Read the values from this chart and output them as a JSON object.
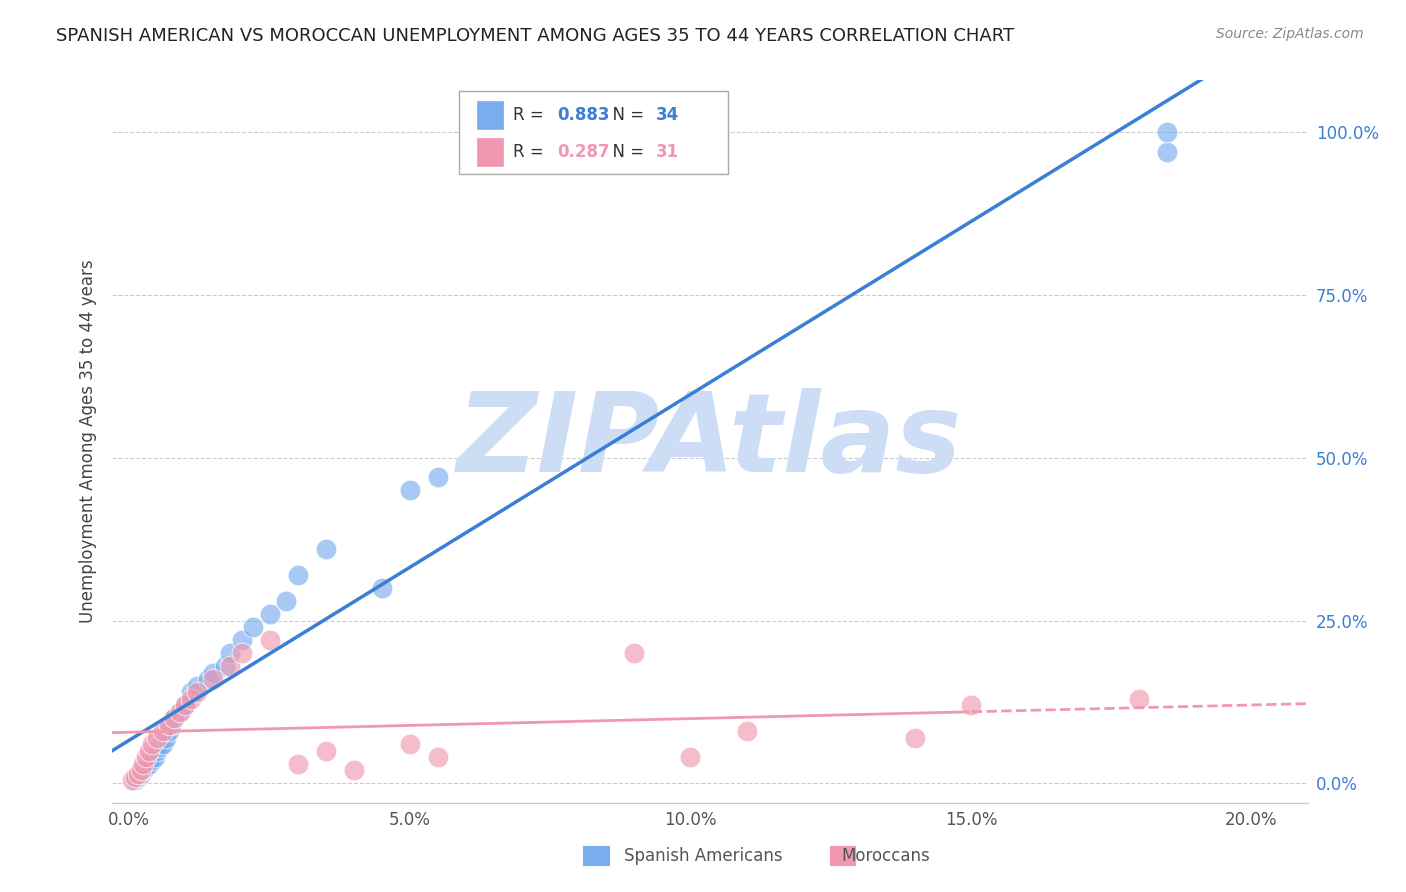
{
  "title": "SPANISH AMERICAN VS MOROCCAN UNEMPLOYMENT AMONG AGES 35 TO 44 YEARS CORRELATION CHART",
  "source": "Source: ZipAtlas.com",
  "ylabel": "Unemployment Among Ages 35 to 44 years",
  "xlim": [
    -0.3,
    21.0
  ],
  "ylim": [
    -3.0,
    108.0
  ],
  "x_tick_vals": [
    0,
    5,
    10,
    15,
    20
  ],
  "x_tick_labels": [
    "0.0%",
    "5.0%",
    "10.0%",
    "15.0%",
    "20.0%"
  ],
  "y_tick_vals": [
    0,
    25,
    50,
    75,
    100
  ],
  "y_tick_labels": [
    "0.0%",
    "25.0%",
    "50.0%",
    "75.0%",
    "100.0%"
  ],
  "spanish_R": 0.883,
  "spanish_N": 34,
  "moroccan_R": 0.287,
  "moroccan_N": 31,
  "spanish_color": "#7aadee",
  "moroccan_color": "#f098b0",
  "spanish_line_color": "#3a7fd5",
  "moroccan_line_color": "#f098b0",
  "watermark": "ZIPAtlas",
  "watermark_color": "#ccddf5",
  "background_color": "#ffffff",
  "sp_x": [
    0.1,
    0.15,
    0.2,
    0.25,
    0.3,
    0.35,
    0.4,
    0.45,
    0.5,
    0.55,
    0.6,
    0.65,
    0.7,
    0.75,
    0.8,
    0.9,
    1.0,
    1.1,
    1.2,
    1.4,
    1.5,
    1.7,
    1.8,
    2.0,
    2.2,
    2.5,
    2.8,
    3.0,
    3.5,
    4.5,
    5.0,
    5.5,
    18.5,
    18.5
  ],
  "sp_y": [
    0.5,
    1.0,
    1.5,
    2.0,
    2.5,
    3.0,
    3.5,
    4.0,
    5.0,
    5.5,
    6.0,
    7.0,
    8.0,
    9.0,
    10.0,
    11.0,
    12.0,
    14.0,
    15.0,
    16.0,
    17.0,
    18.0,
    20.0,
    22.0,
    24.0,
    26.0,
    28.0,
    32.0,
    36.0,
    30.0,
    45.0,
    47.0,
    97.0,
    100.0
  ],
  "mo_x": [
    0.05,
    0.1,
    0.15,
    0.2,
    0.25,
    0.3,
    0.35,
    0.4,
    0.5,
    0.6,
    0.7,
    0.8,
    0.9,
    1.0,
    1.1,
    1.2,
    1.5,
    1.8,
    2.0,
    2.5,
    3.0,
    3.5,
    4.0,
    5.0,
    5.5,
    9.0,
    10.0,
    11.0,
    14.0,
    15.0,
    18.0
  ],
  "mo_y": [
    0.5,
    1.0,
    1.5,
    2.0,
    3.0,
    4.0,
    5.0,
    6.0,
    7.0,
    8.0,
    9.0,
    10.0,
    11.0,
    12.0,
    13.0,
    14.0,
    16.0,
    18.0,
    20.0,
    22.0,
    3.0,
    5.0,
    2.0,
    6.0,
    4.0,
    20.0,
    4.0,
    8.0,
    7.0,
    12.0,
    13.0
  ]
}
